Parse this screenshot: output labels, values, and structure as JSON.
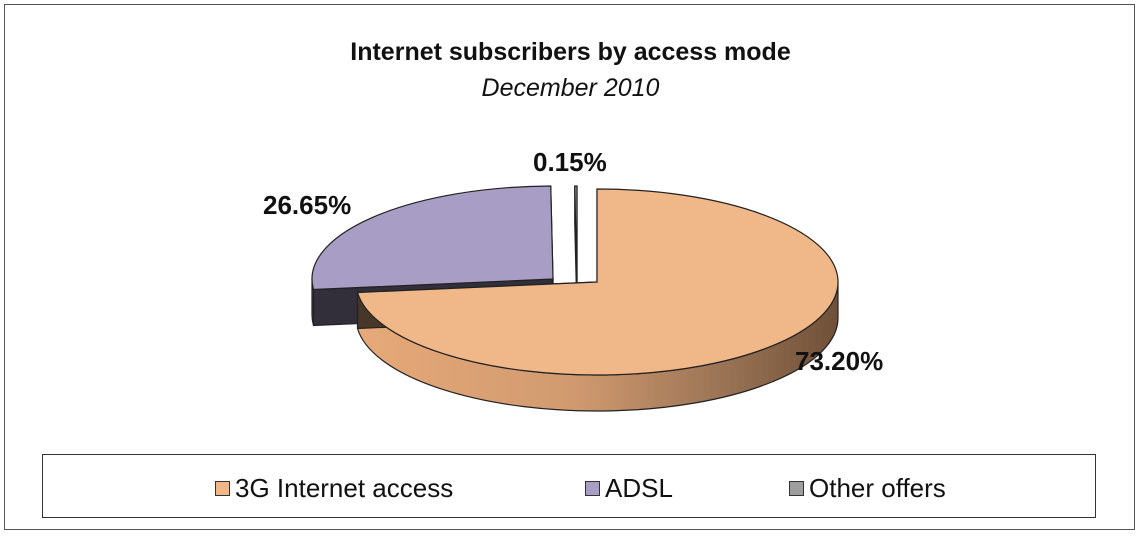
{
  "chart_data": {
    "type": "pie",
    "title": "Internet subscribers by access mode",
    "subtitle": "December 2010",
    "slices": [
      {
        "name": "3G Internet access",
        "value": 73.2,
        "label": "73.20%",
        "color": "#F0B889"
      },
      {
        "name": "ADSL",
        "value": 26.65,
        "label": "26.65%",
        "color": "#A89DC4"
      },
      {
        "name": "Other offers",
        "value": 0.15,
        "label": "0.15%",
        "color": "#9E9E9E"
      }
    ],
    "legend_placement": "bottom",
    "style": "3d-exploded"
  }
}
